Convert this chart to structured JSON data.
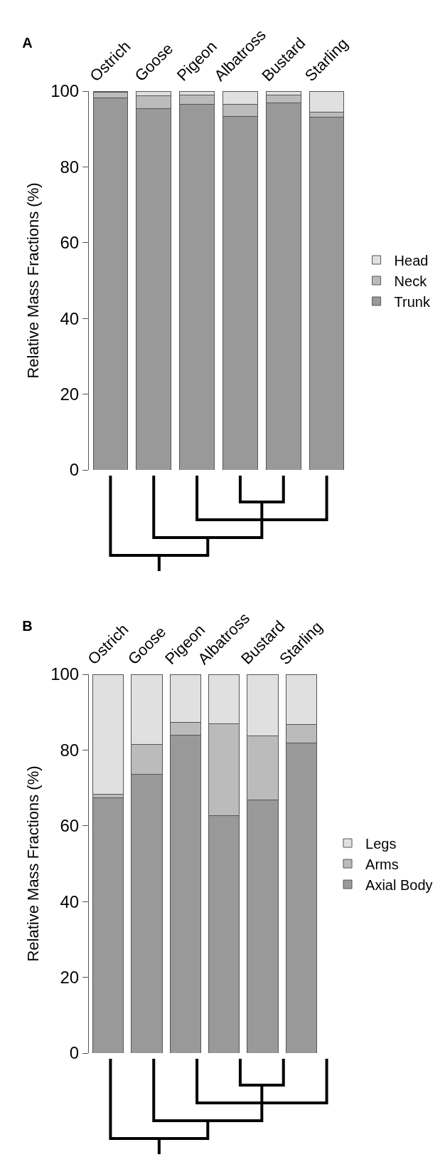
{
  "chart_data": [
    {
      "type": "bar",
      "title": "A",
      "ylabel": "Relative Mass Fractions (%)",
      "stacked": true,
      "legend": "right",
      "categories": [
        "Ostrich",
        "Goose",
        "Pigeon",
        "Albatross",
        "Bustard",
        "Starling"
      ],
      "series": [
        {
          "name": "Trunk",
          "color": "#999999",
          "values": [
            98.2,
            95.4,
            96.6,
            93.4,
            96.9,
            93.2
          ]
        },
        {
          "name": "Neck",
          "color": "#bbbbbb",
          "values": [
            1.5,
            3.4,
            2.3,
            3.1,
            2.1,
            1.2
          ]
        },
        {
          "name": "Head",
          "color": "#e0e0e0",
          "values": [
            0.3,
            1.2,
            1.1,
            3.5,
            1.0,
            5.6
          ]
        }
      ],
      "ylim": [
        0,
        100
      ],
      "yticks": [
        0,
        20,
        40,
        60,
        80,
        100
      ]
    },
    {
      "type": "bar",
      "title": "B",
      "ylabel": "Relative Mass Fractions (%)",
      "stacked": true,
      "legend": "right",
      "categories": [
        "Ostrich",
        "Goose",
        "Pigeon",
        "Albatross",
        "Bustard",
        "Starling"
      ],
      "series": [
        {
          "name": "Axial Body",
          "color": "#999999",
          "values": [
            67.3,
            73.6,
            83.9,
            62.7,
            66.9,
            81.9
          ]
        },
        {
          "name": "Arms",
          "color": "#bbbbbb",
          "values": [
            1.1,
            7.9,
            3.5,
            24.3,
            16.9,
            4.9
          ]
        },
        {
          "name": "Legs",
          "color": "#e0e0e0",
          "values": [
            31.6,
            18.5,
            12.6,
            13.0,
            16.2,
            13.2
          ]
        }
      ],
      "ylim": [
        0,
        100
      ],
      "yticks": [
        0,
        20,
        40,
        60,
        80,
        100
      ]
    }
  ]
}
